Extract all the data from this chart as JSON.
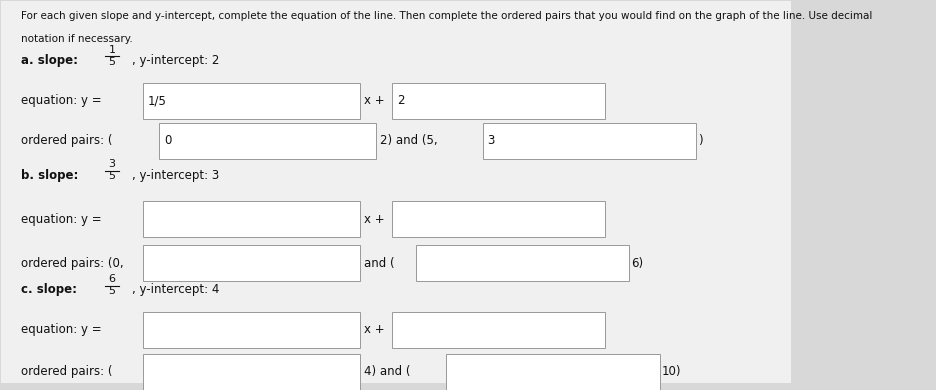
{
  "bg_color": "#d8d8d8",
  "content_bg": "#f0f0f0",
  "title_line1": "For each given slope and y-intercept, complete the equation of the line. Then complete the ordered pairs that you would find on the graph of the line. Use decimal",
  "title_line2": "notation if necessary.",
  "box_color": "#ffffff",
  "box_edge": "#999999",
  "text_color": "#111111",
  "sections": [
    {
      "label": "a.",
      "slope_num": "1",
      "slope_den": "5",
      "intercept_text": ", y-intercept: 2",
      "eq_box1": "1/5",
      "eq_box2": "2",
      "op_open": "(",
      "op_box1": "0",
      "op_mid": "2) and (5,",
      "op_box2": "3",
      "op_close": ")",
      "op_prefix": "ordered pairs: "
    },
    {
      "label": "b.",
      "slope_num": "3",
      "slope_den": "5",
      "intercept_text": ", y-intercept: 3",
      "eq_box1": "",
      "eq_box2": "",
      "op_open": "(0,",
      "op_box1": "",
      "op_mid": "and (",
      "op_box2": "",
      "op_close": "6)",
      "op_prefix": "ordered pairs: "
    },
    {
      "label": "c.",
      "slope_num": "6",
      "slope_den": "5",
      "intercept_text": ", y-intercept: 4",
      "eq_box1": "",
      "eq_box2": "",
      "op_open": "(",
      "op_box1": "",
      "op_mid": "4) and (",
      "op_box2": "",
      "op_close": "10)",
      "op_prefix": "ordered pairs: "
    }
  ]
}
